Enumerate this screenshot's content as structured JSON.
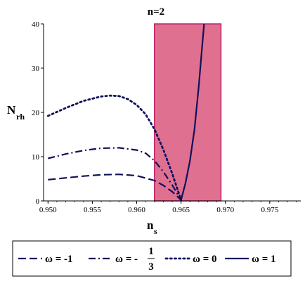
{
  "chart_data": {
    "type": "line",
    "title": "n=2",
    "xlabel": {
      "base": "n",
      "sub": "s"
    },
    "ylabel": {
      "base": "N",
      "sub": "rh"
    },
    "xlim": [
      0.9495,
      0.9785
    ],
    "ylim": [
      0,
      40
    ],
    "x_ticks": [
      0.95,
      0.955,
      0.96,
      0.965,
      0.97,
      0.975
    ],
    "x_tick_labels": [
      "0.950",
      "0.955",
      "0.960",
      "0.965",
      "0.970",
      "0.975"
    ],
    "y_ticks": [
      0,
      10,
      20,
      30,
      40
    ],
    "y_tick_labels": [
      "0",
      "10",
      "20",
      "30",
      "40"
    ],
    "grid": false,
    "shaded_band": {
      "x_range": [
        0.962,
        0.9695
      ],
      "color": "#e07090",
      "border": "#c0206a"
    },
    "line_color": "#10105a",
    "series": [
      {
        "key": "w_m1",
        "dash": "dash",
        "x": [
          0.95,
          0.952,
          0.954,
          0.956,
          0.958,
          0.96,
          0.962,
          0.963,
          0.964,
          0.965
        ],
        "y": [
          4.8,
          5.2,
          5.6,
          5.9,
          6.0,
          5.7,
          4.6,
          3.5,
          2.1,
          0.2
        ]
      },
      {
        "key": "w_m13",
        "dash": "dashdot",
        "x": [
          0.95,
          0.952,
          0.954,
          0.956,
          0.958,
          0.96,
          0.961,
          0.962,
          0.963,
          0.964,
          0.965
        ],
        "y": [
          9.6,
          10.6,
          11.4,
          11.9,
          12.0,
          11.5,
          10.8,
          9.1,
          6.6,
          3.6,
          0.2
        ]
      },
      {
        "key": "w_0",
        "dash": "dot",
        "x": [
          0.95,
          0.952,
          0.954,
          0.956,
          0.957,
          0.958,
          0.959,
          0.96,
          0.961,
          0.962,
          0.963,
          0.964,
          0.965
        ],
        "y": [
          19.2,
          21.0,
          22.6,
          23.6,
          23.8,
          23.7,
          23.0,
          21.7,
          19.6,
          16.2,
          11.6,
          6.2,
          0.2
        ]
      },
      {
        "key": "w_1",
        "dash": "solid",
        "x": [
          0.965,
          0.9655,
          0.966,
          0.9665,
          0.967,
          0.9673,
          0.9676
        ],
        "y": [
          0.2,
          4.0,
          9.0,
          16.0,
          26.0,
          33.0,
          40.0
        ]
      }
    ],
    "legend": {
      "placement": "bottom",
      "entries": [
        {
          "symbol": "ω",
          "value": "-1",
          "dash": "dash"
        },
        {
          "symbol": "ω",
          "num": "1",
          "den": "3",
          "sign": "-",
          "dash": "dashdot"
        },
        {
          "symbol": "ω",
          "value": "0",
          "dash": "dot"
        },
        {
          "symbol": "ω",
          "value": "1",
          "dash": "solid"
        }
      ]
    }
  }
}
